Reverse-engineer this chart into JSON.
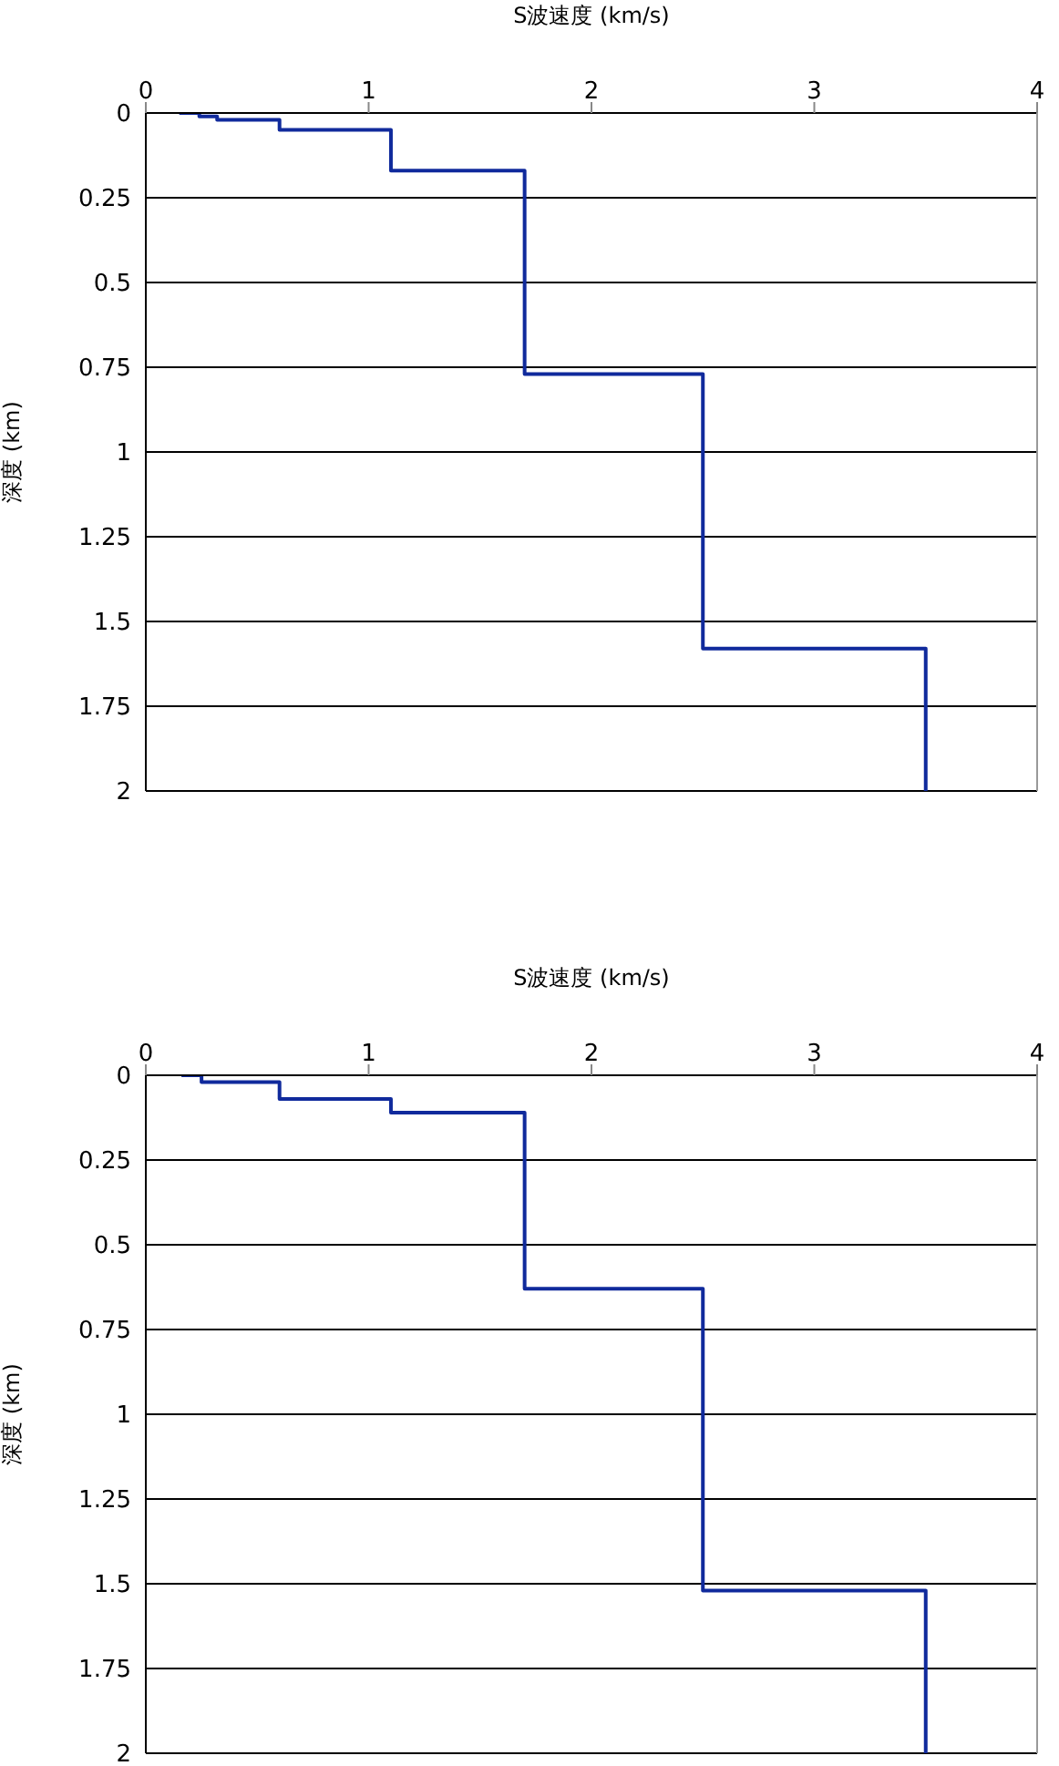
{
  "chart_data": [
    {
      "type": "line",
      "xlabel": "S波速度 (km/s)",
      "ylabel": "深度 (km)",
      "x": [
        0.15,
        0.24,
        0.24,
        0.32,
        0.32,
        0.6,
        0.6,
        1.1,
        1.1,
        1.7,
        1.7,
        2.5,
        2.5,
        3.5,
        3.5
      ],
      "values": [
        0,
        0,
        0.01,
        0.01,
        0.02,
        0.02,
        0.05,
        0.05,
        0.17,
        0.17,
        0.77,
        0.77,
        1.58,
        1.58,
        2
      ],
      "color": "#102a9c",
      "xlim": [
        0,
        4
      ],
      "xticks": [
        0,
        1,
        2,
        3,
        4
      ],
      "ylim": [
        2,
        0
      ],
      "yticks": [
        0,
        0.25,
        0.5,
        0.75,
        1,
        1.25,
        1.5,
        1.75,
        2
      ],
      "grid": "y",
      "legend": false,
      "marker": "none"
    },
    {
      "type": "line",
      "xlabel": "S波速度 (km/s)",
      "ylabel": "深度 (km)",
      "x": [
        0.16,
        0.25,
        0.25,
        0.6,
        0.6,
        1.1,
        1.1,
        1.7,
        1.7,
        2.5,
        2.5,
        3.5,
        3.5
      ],
      "values": [
        0,
        0,
        0.02,
        0.02,
        0.07,
        0.07,
        0.11,
        0.11,
        0.63,
        0.63,
        1.52,
        1.52,
        2
      ],
      "color": "#102a9c",
      "xlim": [
        0,
        4
      ],
      "xticks": [
        0,
        1,
        2,
        3,
        4
      ],
      "ylim": [
        2,
        0
      ],
      "yticks": [
        0,
        0.25,
        0.5,
        0.75,
        1,
        1.25,
        1.5,
        1.75,
        2
      ],
      "grid": "y",
      "legend": false,
      "marker": "none"
    }
  ]
}
